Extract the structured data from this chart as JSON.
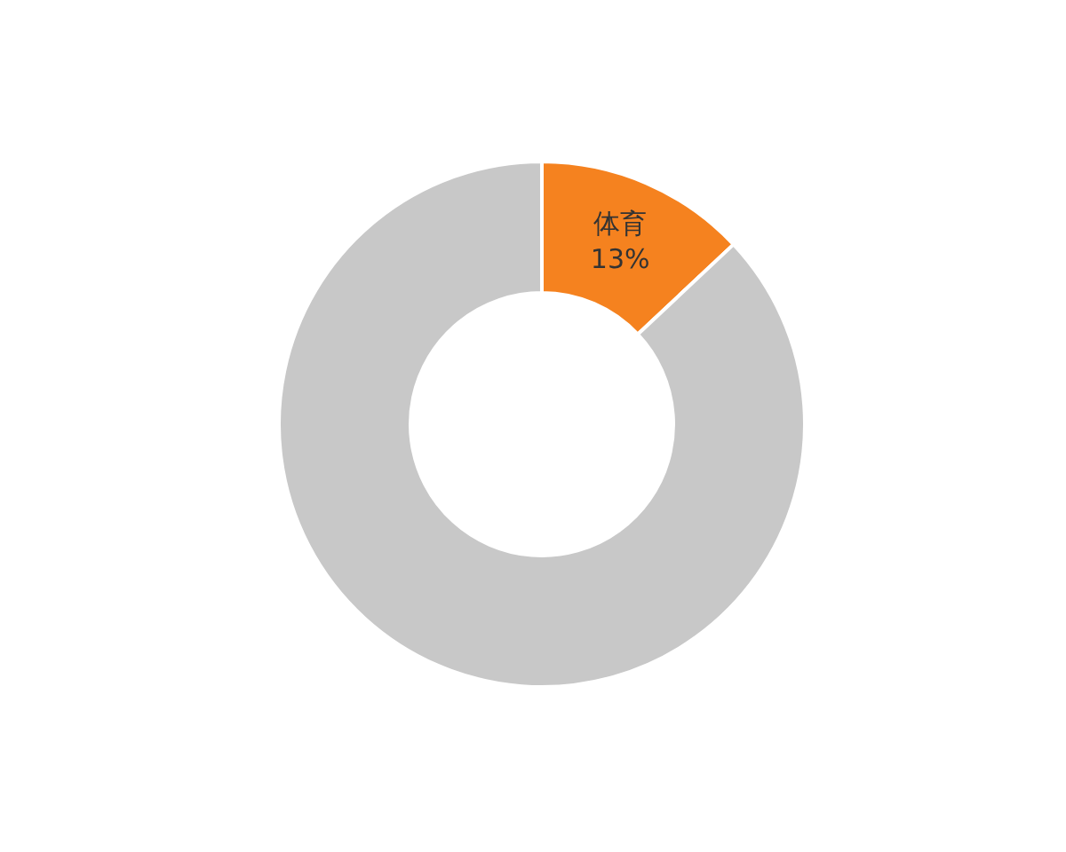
{
  "chart_data": {
    "type": "donut",
    "categories": [
      "体育",
      null
    ],
    "values": [
      13,
      87
    ],
    "colors": [
      "#f5821f",
      "#c8c8c8"
    ],
    "value_labels": [
      "13%",
      null
    ],
    "legend": false
  }
}
